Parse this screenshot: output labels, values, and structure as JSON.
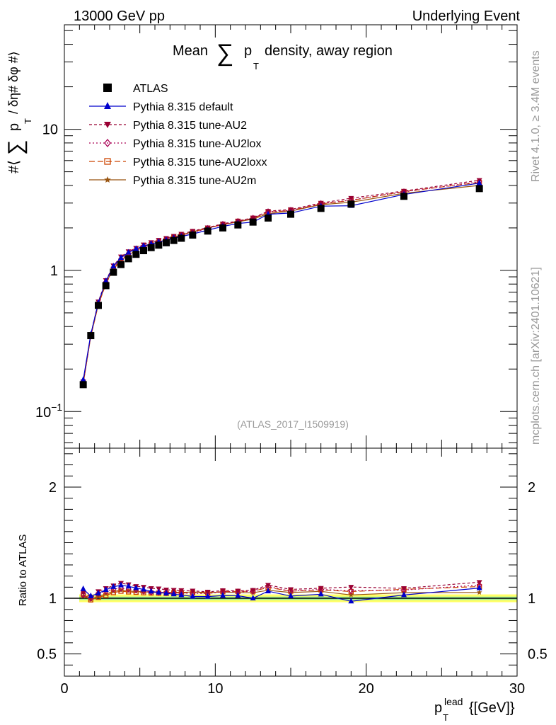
{
  "header": {
    "left": "13000 GeV pp",
    "right": "Underlying Event"
  },
  "side_labels": {
    "rivet": "Rivet 4.1.0, ≥ 3.4M events",
    "mcplots": "mcplots.cern.ch [arXiv:2401.10621]"
  },
  "colors": {
    "atlas": "#000000",
    "default": "#0000cc",
    "au2": "#990033",
    "au2lox": "#aa0055",
    "au2loxx": "#cc4400",
    "au2m": "#995511",
    "band_yellow": "#ffff66",
    "band_green": "#99ee99"
  },
  "chart_data": [
    {
      "type": "line",
      "title": "Mean ∑ pT density, away region",
      "title_parts": {
        "prefix": "Mean",
        "sum": "∑",
        "p": "p",
        "sub": "T",
        "suffix": "density, away region"
      },
      "ylabel": "#⟨ ∑ pT / δη# δφ #⟩",
      "ylabel_parts": {
        "hash_open": "#⟨",
        "sum": "∑",
        "p": "p",
        "sub": "T",
        "rest": "/ δη# δφ #⟩"
      },
      "yscale": "log",
      "ylim": [
        0.055,
        55
      ],
      "xlim": [
        0,
        30
      ],
      "yticks": [
        {
          "value": 0.1,
          "base": "10",
          "exp": "−1"
        },
        {
          "value": 1,
          "label": "1"
        },
        {
          "value": 10,
          "label": "10"
        }
      ],
      "watermark": "(ATLAS_2017_I1509919)",
      "x": [
        1.25,
        1.75,
        2.25,
        2.75,
        3.25,
        3.75,
        4.25,
        4.75,
        5.25,
        5.75,
        6.25,
        6.75,
        7.25,
        7.75,
        8.5,
        9.5,
        10.5,
        11.5,
        12.5,
        13.5,
        15.0,
        17.0,
        19.0,
        22.5,
        27.5
      ],
      "series": [
        {
          "name": "ATLAS",
          "color_key": "atlas",
          "marker": "square",
          "dash": "",
          "values": [
            0.155,
            0.345,
            0.565,
            0.78,
            0.97,
            1.1,
            1.21,
            1.3,
            1.38,
            1.45,
            1.51,
            1.57,
            1.63,
            1.69,
            1.78,
            1.9,
            2.0,
            2.1,
            2.2,
            2.35,
            2.5,
            2.75,
            2.95,
            3.35,
            3.8
          ]
        },
        {
          "name": "Pythia 8.315 default",
          "color_key": "default",
          "marker": "triangle",
          "dash": "",
          "values": [
            0.168,
            0.352,
            0.59,
            0.84,
            1.07,
            1.23,
            1.34,
            1.42,
            1.49,
            1.54,
            1.59,
            1.64,
            1.69,
            1.74,
            1.81,
            1.93,
            2.05,
            2.15,
            2.2,
            2.5,
            2.55,
            2.85,
            2.87,
            3.45,
            4.15
          ]
        },
        {
          "name": "Pythia 8.315 tune-AU2",
          "color_key": "au2",
          "marker": "tri_down",
          "dash": "4,3",
          "values": [
            0.163,
            0.348,
            0.6,
            0.85,
            1.08,
            1.25,
            1.36,
            1.44,
            1.52,
            1.58,
            1.64,
            1.69,
            1.75,
            1.81,
            1.9,
            2.01,
            2.14,
            2.24,
            2.36,
            2.63,
            2.7,
            3.0,
            3.25,
            3.65,
            4.35
          ]
        },
        {
          "name": "Pythia 8.315 tune-AU2lox",
          "color_key": "au2lox",
          "marker": "diamond",
          "dash": "2,3",
          "values": [
            0.16,
            0.345,
            0.59,
            0.83,
            1.05,
            1.2,
            1.31,
            1.4,
            1.47,
            1.53,
            1.59,
            1.65,
            1.71,
            1.77,
            1.86,
            1.98,
            2.12,
            2.22,
            2.34,
            2.6,
            2.66,
            2.97,
            3.15,
            3.6,
            4.25
          ]
        },
        {
          "name": "Pythia 8.315 tune-AU2loxx",
          "color_key": "au2loxx",
          "marker": "square_open",
          "dash": "8,4",
          "values": [
            0.16,
            0.34,
            0.57,
            0.8,
            1.02,
            1.17,
            1.28,
            1.37,
            1.45,
            1.52,
            1.58,
            1.64,
            1.71,
            1.77,
            1.87,
            1.99,
            2.12,
            2.23,
            2.34,
            2.58,
            2.66,
            2.96,
            3.13,
            3.62,
            4.2
          ]
        },
        {
          "name": "Pythia 8.315 tune-AU2m",
          "color_key": "au2m",
          "marker": "star",
          "dash": "",
          "values": [
            0.158,
            0.342,
            0.575,
            0.81,
            1.03,
            1.18,
            1.29,
            1.38,
            1.46,
            1.53,
            1.59,
            1.65,
            1.72,
            1.78,
            1.88,
            2.0,
            2.11,
            2.21,
            2.31,
            2.52,
            2.63,
            2.92,
            3.04,
            3.52,
            4.0
          ]
        }
      ]
    },
    {
      "type": "line",
      "title": "",
      "ylabel": "Ratio to ATLAS",
      "xlabel": "pT lead {[GeV]}",
      "xlabel_parts": {
        "p": "p",
        "sub": "T",
        "sup": "lead",
        "unit": "{[GeV]}"
      },
      "ylim": [
        0.3,
        2.35
      ],
      "xlim": [
        0,
        30
      ],
      "yticks": [
        0.5,
        1,
        2
      ],
      "xticks": [
        0,
        10,
        20,
        30
      ],
      "reference": 1,
      "band_inner": [
        0.985,
        1.015
      ],
      "band_outer": [
        0.965,
        1.035
      ]
    }
  ]
}
